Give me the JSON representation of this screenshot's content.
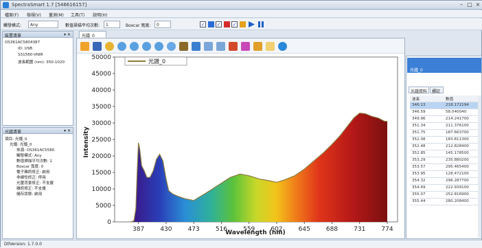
{
  "window": {
    "title": "SpectraSmart 1.7 [546616157]"
  },
  "menu": [
    "檔案(F)",
    "檢視(V)",
    "量測(M)",
    "工具(T)",
    "說明(H)"
  ],
  "toolbar": {
    "trigger_label": "觸發模式:",
    "trigger_value": "Any",
    "avg_label": "數值掃描平均次數:",
    "avg_value": "1",
    "boxcar_label": "Boxcar 寬度:",
    "boxcar_value": "0"
  },
  "device_panel": {
    "title": "裝置清單",
    "items": [
      "OS361AC5804387",
      "ID: USB",
      "S31560-VNIR",
      "波長範圍 (nm): 350-1020"
    ]
  },
  "spectrum_panel": {
    "title": "光譜清單",
    "items": [
      "項目: 光譜_0",
      "光譜: 光譜_0",
      "來源: OS361AC5580",
      "觸發模式: Any",
      "數值掃描平均次數: 1",
      "Boxcar 寬度: 0",
      "電子雜訊修正: 啟用",
      "非線性修正: 停用",
      "光暈背景修正: 不支援",
      "雜訊修正: 不支援",
      "儲存狀態: 啟用"
    ]
  },
  "doc_tab": {
    "label": "光譜_0"
  },
  "right_panel": {
    "top_item": "光譜_0",
    "tabs": [
      "光譜資料",
      "標記"
    ],
    "col_headers": [
      "波長",
      "數值"
    ],
    "rows": [
      [
        "346.13",
        "218.172194"
      ],
      [
        "346.59",
        "58.040040"
      ],
      [
        "349.96",
        "214.241700"
      ],
      [
        "351.34",
        "211.376100"
      ],
      [
        "351.75",
        "187.663700"
      ],
      [
        "352.08",
        "183.811300"
      ],
      [
        "352.48",
        "212.828400"
      ],
      [
        "352.85",
        "145.178500"
      ],
      [
        "353.29",
        "235.880200"
      ],
      [
        "353.57",
        "295.465400"
      ],
      [
        "353.95",
        "128.472100"
      ],
      [
        "354.32",
        "296.287700"
      ],
      [
        "354.69",
        "222.939100"
      ],
      [
        "355.07",
        "252.816900"
      ],
      [
        "355.44",
        "280.208400"
      ]
    ]
  },
  "status": {
    "text": "DllVersion: 1.7.0.0"
  },
  "chart_data": {
    "type": "area",
    "title": "",
    "legend": "光譜_0",
    "xlabel": "Wavelength (nm)",
    "ylabel": "Intensity",
    "xlim": [
      350,
      790
    ],
    "ylim": [
      0,
      50000
    ],
    "xticks": [
      387,
      430,
      473,
      516,
      559,
      602,
      645,
      688,
      731,
      774
    ],
    "yticks": [
      0,
      5000,
      10000,
      15000,
      20000,
      25000,
      30000,
      35000,
      40000,
      45000,
      50000
    ],
    "x": [
      375,
      380,
      383,
      385,
      387,
      389,
      392,
      396,
      400,
      405,
      410,
      415,
      420,
      425,
      430,
      434,
      440,
      448,
      460,
      473,
      490,
      510,
      530,
      545,
      559,
      575,
      590,
      602,
      615,
      630,
      645,
      660,
      675,
      688,
      700,
      712,
      722,
      731,
      740,
      750,
      760,
      770,
      774
    ],
    "y": [
      0,
      300,
      4000,
      15000,
      24000,
      22000,
      17000,
      15500,
      13500,
      13500,
      15500,
      19000,
      20500,
      18500,
      13000,
      9500,
      8500,
      7800,
      7000,
      6500,
      8500,
      11000,
      13500,
      14500,
      14000,
      13000,
      12500,
      12000,
      12800,
      14000,
      16000,
      18500,
      21000,
      23500,
      26000,
      29000,
      31500,
      33000,
      32800,
      32000,
      31500,
      30500,
      30500
    ],
    "line_color": "#8a7a3c"
  }
}
